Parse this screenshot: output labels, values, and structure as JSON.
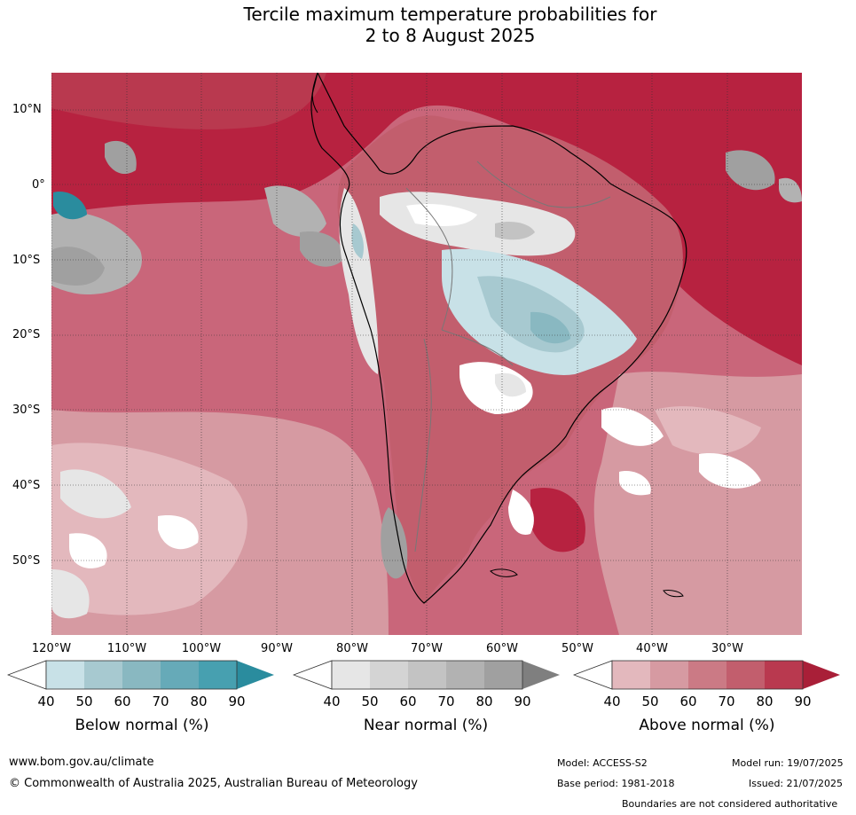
{
  "title_line1": "Tercile maximum temperature probabilities for",
  "title_line2": "2 to 8 August 2025",
  "lat_labels": [
    "10°N",
    "0°",
    "10°S",
    "20°S",
    "30°S",
    "40°S",
    "50°S"
  ],
  "lon_labels": [
    "120°W",
    "110°W",
    "100°W",
    "90°W",
    "80°W",
    "70°W",
    "60°W",
    "50°W",
    "40°W",
    "30°W"
  ],
  "colorbars": [
    {
      "label": "Below normal (%)",
      "ticks": [
        "40",
        "50",
        "60",
        "70",
        "80",
        "90"
      ],
      "colors": [
        "#c8e1e7",
        "#a7c9d0",
        "#89b8c1",
        "#66aab8",
        "#47a0b0",
        "#2a8c9e"
      ]
    },
    {
      "label": "Near normal (%)",
      "ticks": [
        "40",
        "50",
        "60",
        "70",
        "80",
        "90"
      ],
      "colors": [
        "#e6e6e6",
        "#d4d4d4",
        "#c3c3c3",
        "#b2b2b2",
        "#a0a0a0",
        "#7f7f7f"
      ]
    },
    {
      "label": "Above normal (%)",
      "ticks": [
        "40",
        "50",
        "60",
        "70",
        "80",
        "90"
      ],
      "colors": [
        "#e3b8bd",
        "#d69aa2",
        "#cb7a85",
        "#c25e6d",
        "#b9394f",
        "#a91f38"
      ]
    }
  ],
  "footer": {
    "website": "www.bom.gov.au/climate",
    "copyright": "© Commonwealth of Australia 2025, Australian Bureau of Meteorology",
    "model": "Model: ACCESS-S2",
    "model_run": "Model run: 19/07/2025",
    "base_period": "Base period: 1981-2018",
    "issued": "Issued: 21/07/2025",
    "disclaimer": "Boundaries are not considered authoritative"
  }
}
